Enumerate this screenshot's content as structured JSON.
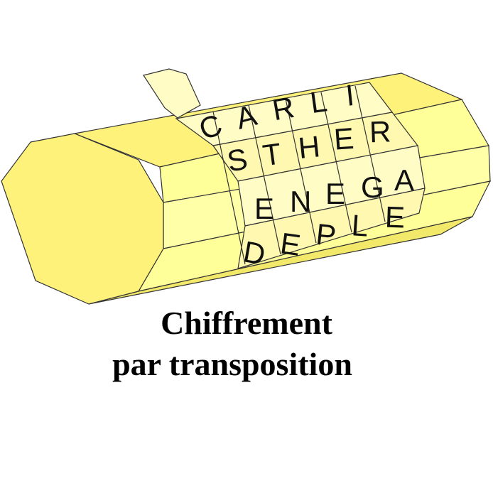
{
  "figure": {
    "rows": [
      [
        "C",
        "A",
        "R",
        "L",
        "I"
      ],
      [
        "S",
        "T",
        "H",
        "E",
        "R"
      ],
      [
        "E",
        "N",
        "E",
        "G",
        "A"
      ],
      [
        "D",
        "E",
        "P",
        "L",
        "E"
      ]
    ],
    "colors": {
      "body_light": "#ffff99",
      "body_dark": "#f2e86a",
      "end_face": "#fff27a",
      "strip": "#fffcc6",
      "outline": "#333333"
    }
  },
  "caption": {
    "line1": "Chiffrement",
    "line2": "par transposition"
  }
}
